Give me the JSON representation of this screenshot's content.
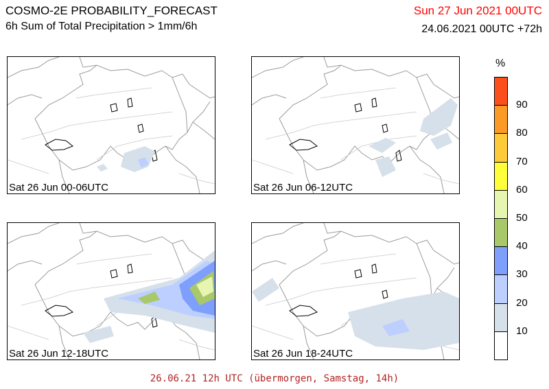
{
  "header": {
    "model_title": "COSMO-2E PROBABILITY_FORECAST",
    "variable": "6h Sum of Total Precipitation > 1mm/6h",
    "valid_date": "Sun 27 Jun 2021 00UTC",
    "run_info": "24.06.2021 00UTC +72h"
  },
  "panels": [
    {
      "label": "Sat 26 Jun 00-06UTC"
    },
    {
      "label": "Sat 26 Jun 06-12UTC"
    },
    {
      "label": "Sat 26 Jun 12-18UTC"
    },
    {
      "label": "Sat 26 Jun 18-24UTC"
    }
  ],
  "legend": {
    "unit": "%",
    "ticks": [
      "90",
      "80",
      "70",
      "60",
      "50",
      "40",
      "30",
      "20",
      "10"
    ],
    "colors": [
      "#ffffff",
      "#d6e0ea",
      "#bccfff",
      "#7f9ffd",
      "#a9c86a",
      "#e6f5b0",
      "#fffe3a",
      "#fdcb3a",
      "#fb9a25",
      "#fb4f1c"
    ]
  },
  "footer": {
    "text": "26.06.21 12h UTC (übermorgen, Samstag, 14h)",
    "color": "#b22222"
  },
  "colors": {
    "valid_date": "#ff0000"
  }
}
